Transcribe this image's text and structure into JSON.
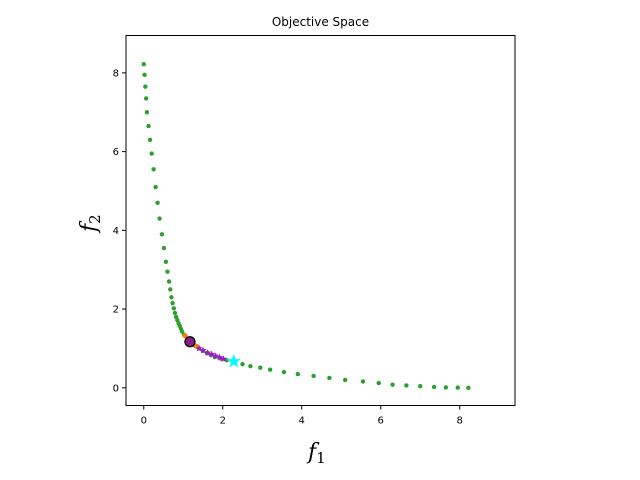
{
  "chart_data": {
    "type": "scatter",
    "title": "Objective Space",
    "xlabel": {
      "main": "f",
      "sub": "1"
    },
    "ylabel": {
      "main": "f",
      "sub": "2"
    },
    "xlim": [
      -0.45,
      9.4
    ],
    "ylim": [
      -0.45,
      8.95
    ],
    "xticks": [
      0,
      2,
      4,
      6,
      8
    ],
    "yticks": [
      0,
      2,
      4,
      6,
      8
    ],
    "grid": false,
    "colors": {
      "front": "#2ca02c",
      "near": "#ff7f0e",
      "stars": "#9b1dbf",
      "highlight": "#8b1a8b",
      "best": "#00ffff"
    },
    "series": [
      {
        "marker": "dot",
        "x": [
          0.0,
          0.02,
          0.04,
          0.06,
          0.08,
          0.12,
          0.16,
          0.2,
          0.25,
          0.3,
          0.35,
          0.4,
          0.46,
          0.51,
          0.56,
          0.6,
          0.64,
          0.67,
          0.7,
          0.73,
          0.76,
          0.79,
          0.82,
          0.85,
          0.88,
          0.91,
          0.94,
          0.97,
          1.02,
          1.1,
          1.2,
          1.3,
          1.4,
          1.5,
          1.6,
          1.7,
          1.8,
          1.95,
          2.1,
          2.3,
          2.5,
          2.7,
          2.95,
          3.2,
          3.55,
          3.9,
          4.3,
          4.7,
          5.1,
          5.55,
          5.95,
          6.3,
          6.65,
          7.0,
          7.35,
          7.65,
          7.95,
          8.22
        ],
        "y": [
          8.22,
          7.95,
          7.65,
          7.35,
          7.0,
          6.65,
          6.3,
          5.95,
          5.55,
          5.1,
          4.7,
          4.3,
          3.9,
          3.55,
          3.2,
          2.95,
          2.7,
          2.5,
          2.3,
          2.15,
          2.02,
          1.9,
          1.8,
          1.72,
          1.64,
          1.57,
          1.5,
          1.43,
          1.35,
          1.24,
          1.15,
          1.07,
          1.0,
          0.94,
          0.88,
          0.83,
          0.78,
          0.74,
          0.7,
          0.66,
          0.6,
          0.55,
          0.51,
          0.46,
          0.4,
          0.35,
          0.3,
          0.25,
          0.2,
          0.16,
          0.12,
          0.08,
          0.06,
          0.04,
          0.02,
          0.01,
          0.005,
          0.0
        ]
      },
      {
        "marker": "dot",
        "x": [
          1.05,
          1.15,
          1.25,
          1.35
        ],
        "y": [
          1.32,
          1.2,
          1.12,
          1.05
        ]
      },
      {
        "marker": "star",
        "x": [
          1.4,
          1.5,
          1.62,
          1.72,
          1.82,
          1.92,
          2.02
        ],
        "y": [
          1.0,
          0.95,
          0.89,
          0.85,
          0.81,
          0.77,
          0.73
        ]
      },
      {
        "marker": "circle",
        "x": [
          1.17
        ],
        "y": [
          1.17
        ]
      },
      {
        "marker": "bigstar",
        "x": [
          2.28
        ],
        "y": [
          0.67
        ]
      }
    ]
  }
}
